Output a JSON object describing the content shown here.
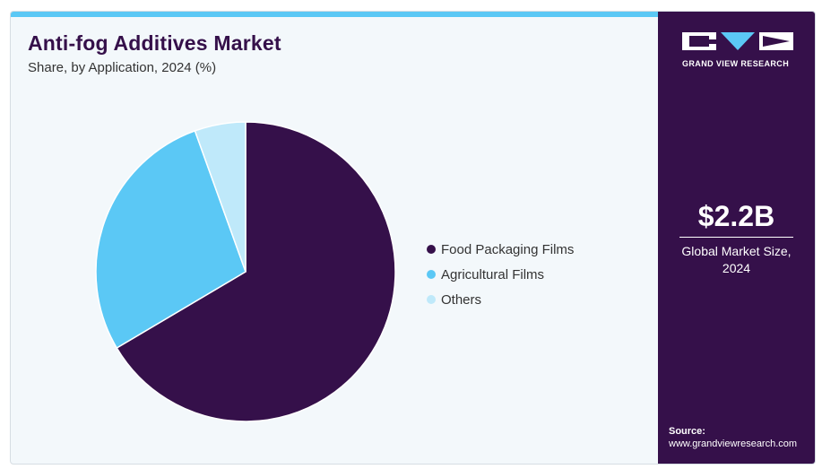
{
  "header": {
    "title": "Anti-fog Additives Market",
    "subtitle": "Share, by Application, 2024 (%)"
  },
  "chart_data": {
    "type": "pie",
    "categories": [
      "Food Packaging Films",
      "Agricultural Films",
      "Others"
    ],
    "values": [
      66.5,
      28,
      5.5
    ],
    "colors": [
      "#35104a",
      "#5bc8f5",
      "#bfe9fa"
    ],
    "start_angle": "12 o'clock",
    "direction": "clockwise",
    "legend_position": "right"
  },
  "sidebar": {
    "brand": "GRAND VIEW RESEARCH",
    "market_size_value": "$2.2B",
    "market_size_caption_line1": "Global Market Size,",
    "market_size_caption_line2": "2024",
    "source_label": "Source:",
    "source_url": "www.grandviewresearch.com"
  },
  "colors": {
    "accent_bar": "#5bc8f5",
    "sidebar_bg": "#35104a",
    "card_bg": "#f3f8fb"
  }
}
